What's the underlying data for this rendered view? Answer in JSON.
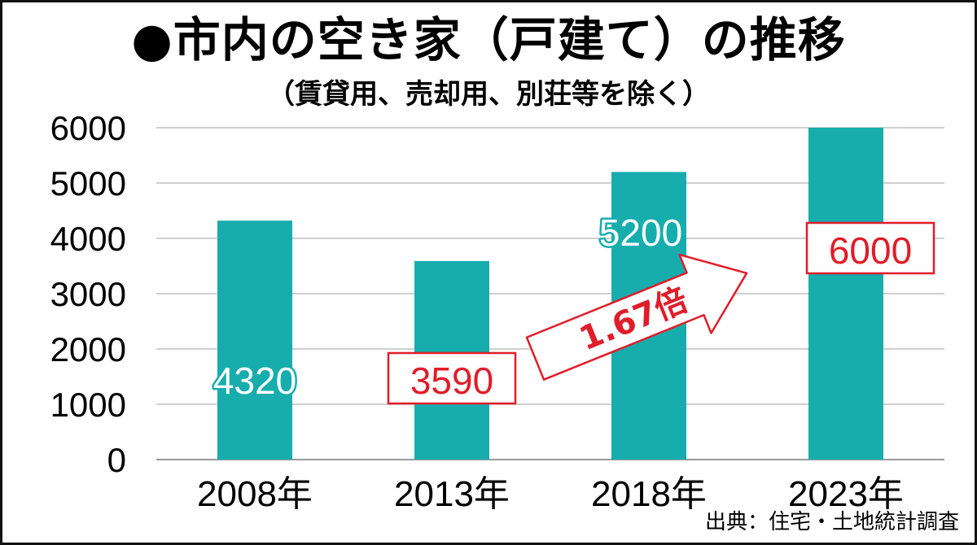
{
  "chart_data": {
    "type": "bar",
    "title": "●市内の空き家（戸建て）の推移",
    "subtitle": "（賃貸用、売却用、別荘等を除く）",
    "categories": [
      "2008年",
      "2013年",
      "2018年",
      "2023年"
    ],
    "values": [
      4320,
      3590,
      5200,
      6000
    ],
    "ylim": [
      0,
      6000
    ],
    "yticks": [
      "0",
      "1000",
      "2000",
      "3000",
      "4000",
      "5000",
      "6000"
    ],
    "grid": true,
    "bar_color": "#18adad",
    "data_labels": [
      {
        "text": "4320",
        "style": "outlined",
        "color": "#18adad"
      },
      {
        "text": "3590",
        "style": "boxed",
        "color": "#e01d2a"
      },
      {
        "text": "5200",
        "style": "outlined",
        "color": "#18adad"
      },
      {
        "text": "6000",
        "style": "boxed",
        "color": "#e01d2a"
      }
    ],
    "annotation": {
      "text": "1.67倍",
      "color": "#e01d2a"
    },
    "source": "出典：住宅・土地統計調査"
  }
}
